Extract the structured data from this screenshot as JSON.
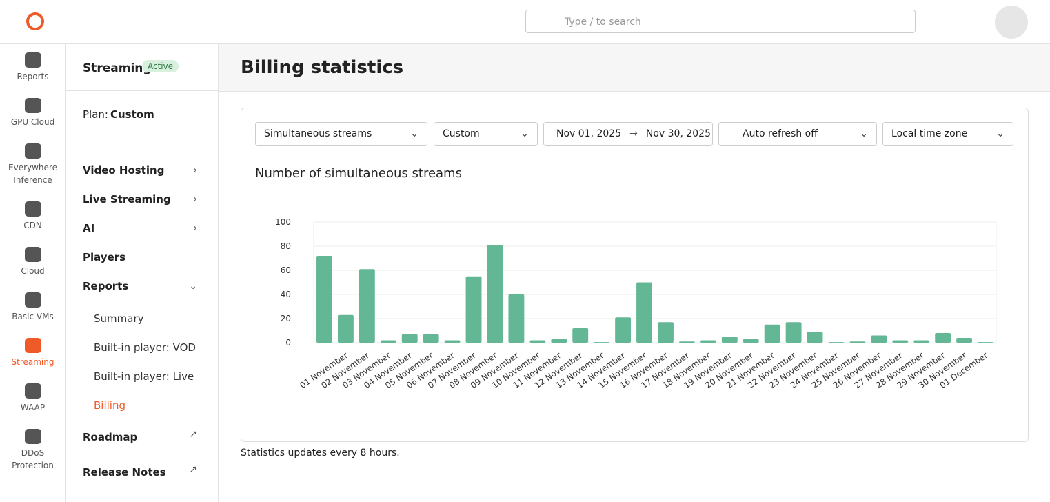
{
  "header": {
    "search_placeholder": "Type / to search"
  },
  "nav": [
    "Reports",
    "GPU Cloud",
    "Everywhere Inference",
    "CDN",
    "Cloud",
    "Basic VMs",
    "Streaming",
    "WAAP",
    "DDoS Protection"
  ],
  "sidebar": {
    "product": "Streaming",
    "status": "Active",
    "plan_label": "Plan:",
    "plan": "Custom",
    "menu": [
      "Video Hosting",
      "Live Streaming",
      "AI",
      "Players",
      "Reports"
    ],
    "submenu": [
      "Summary",
      "Built-in player: VOD",
      "Built-in player: Live",
      "Billing"
    ],
    "links": [
      "Roadmap",
      "Release Notes"
    ]
  },
  "page": {
    "title": "Billing statistics",
    "filters": {
      "metric": "Simultaneous streams",
      "period": "Custom",
      "date_from": "Nov 01, 2025",
      "date_to": "Nov 30, 2025",
      "refresh": "Auto refresh off",
      "timezone": "Local time zone"
    },
    "footnote": "Statistics updates every 8 hours."
  },
  "chart_data": {
    "type": "bar",
    "title": "Number of simultaneous streams",
    "categories": [
      null,
      "01 November",
      "02 November",
      "03 November",
      "04 November",
      "05 November",
      "06 November",
      "07 November",
      "08 November",
      "09 November",
      "10 November",
      "11 November",
      "12 November",
      "13 November",
      "14 November",
      "15 November",
      "16 November",
      "17 November",
      "18 November",
      "19 November",
      "20 November",
      "21 November",
      "22 November",
      "23 November",
      "24 November",
      "25 November",
      "26 November",
      "27 November",
      "28 November",
      "29 November",
      "30 November",
      "01 December"
    ],
    "values": [
      72,
      23,
      61,
      2,
      7,
      7,
      2,
      55,
      81,
      40,
      2,
      3,
      12,
      0.5,
      21,
      50,
      17,
      1,
      2,
      5,
      3,
      15,
      17,
      9,
      0.5,
      1,
      6,
      2,
      2,
      8,
      4,
      0.5
    ],
    "color": "#63b795",
    "ylim": [
      0,
      100
    ],
    "yticks": [
      0,
      20,
      40,
      60,
      80,
      100
    ],
    "grid": true
  }
}
